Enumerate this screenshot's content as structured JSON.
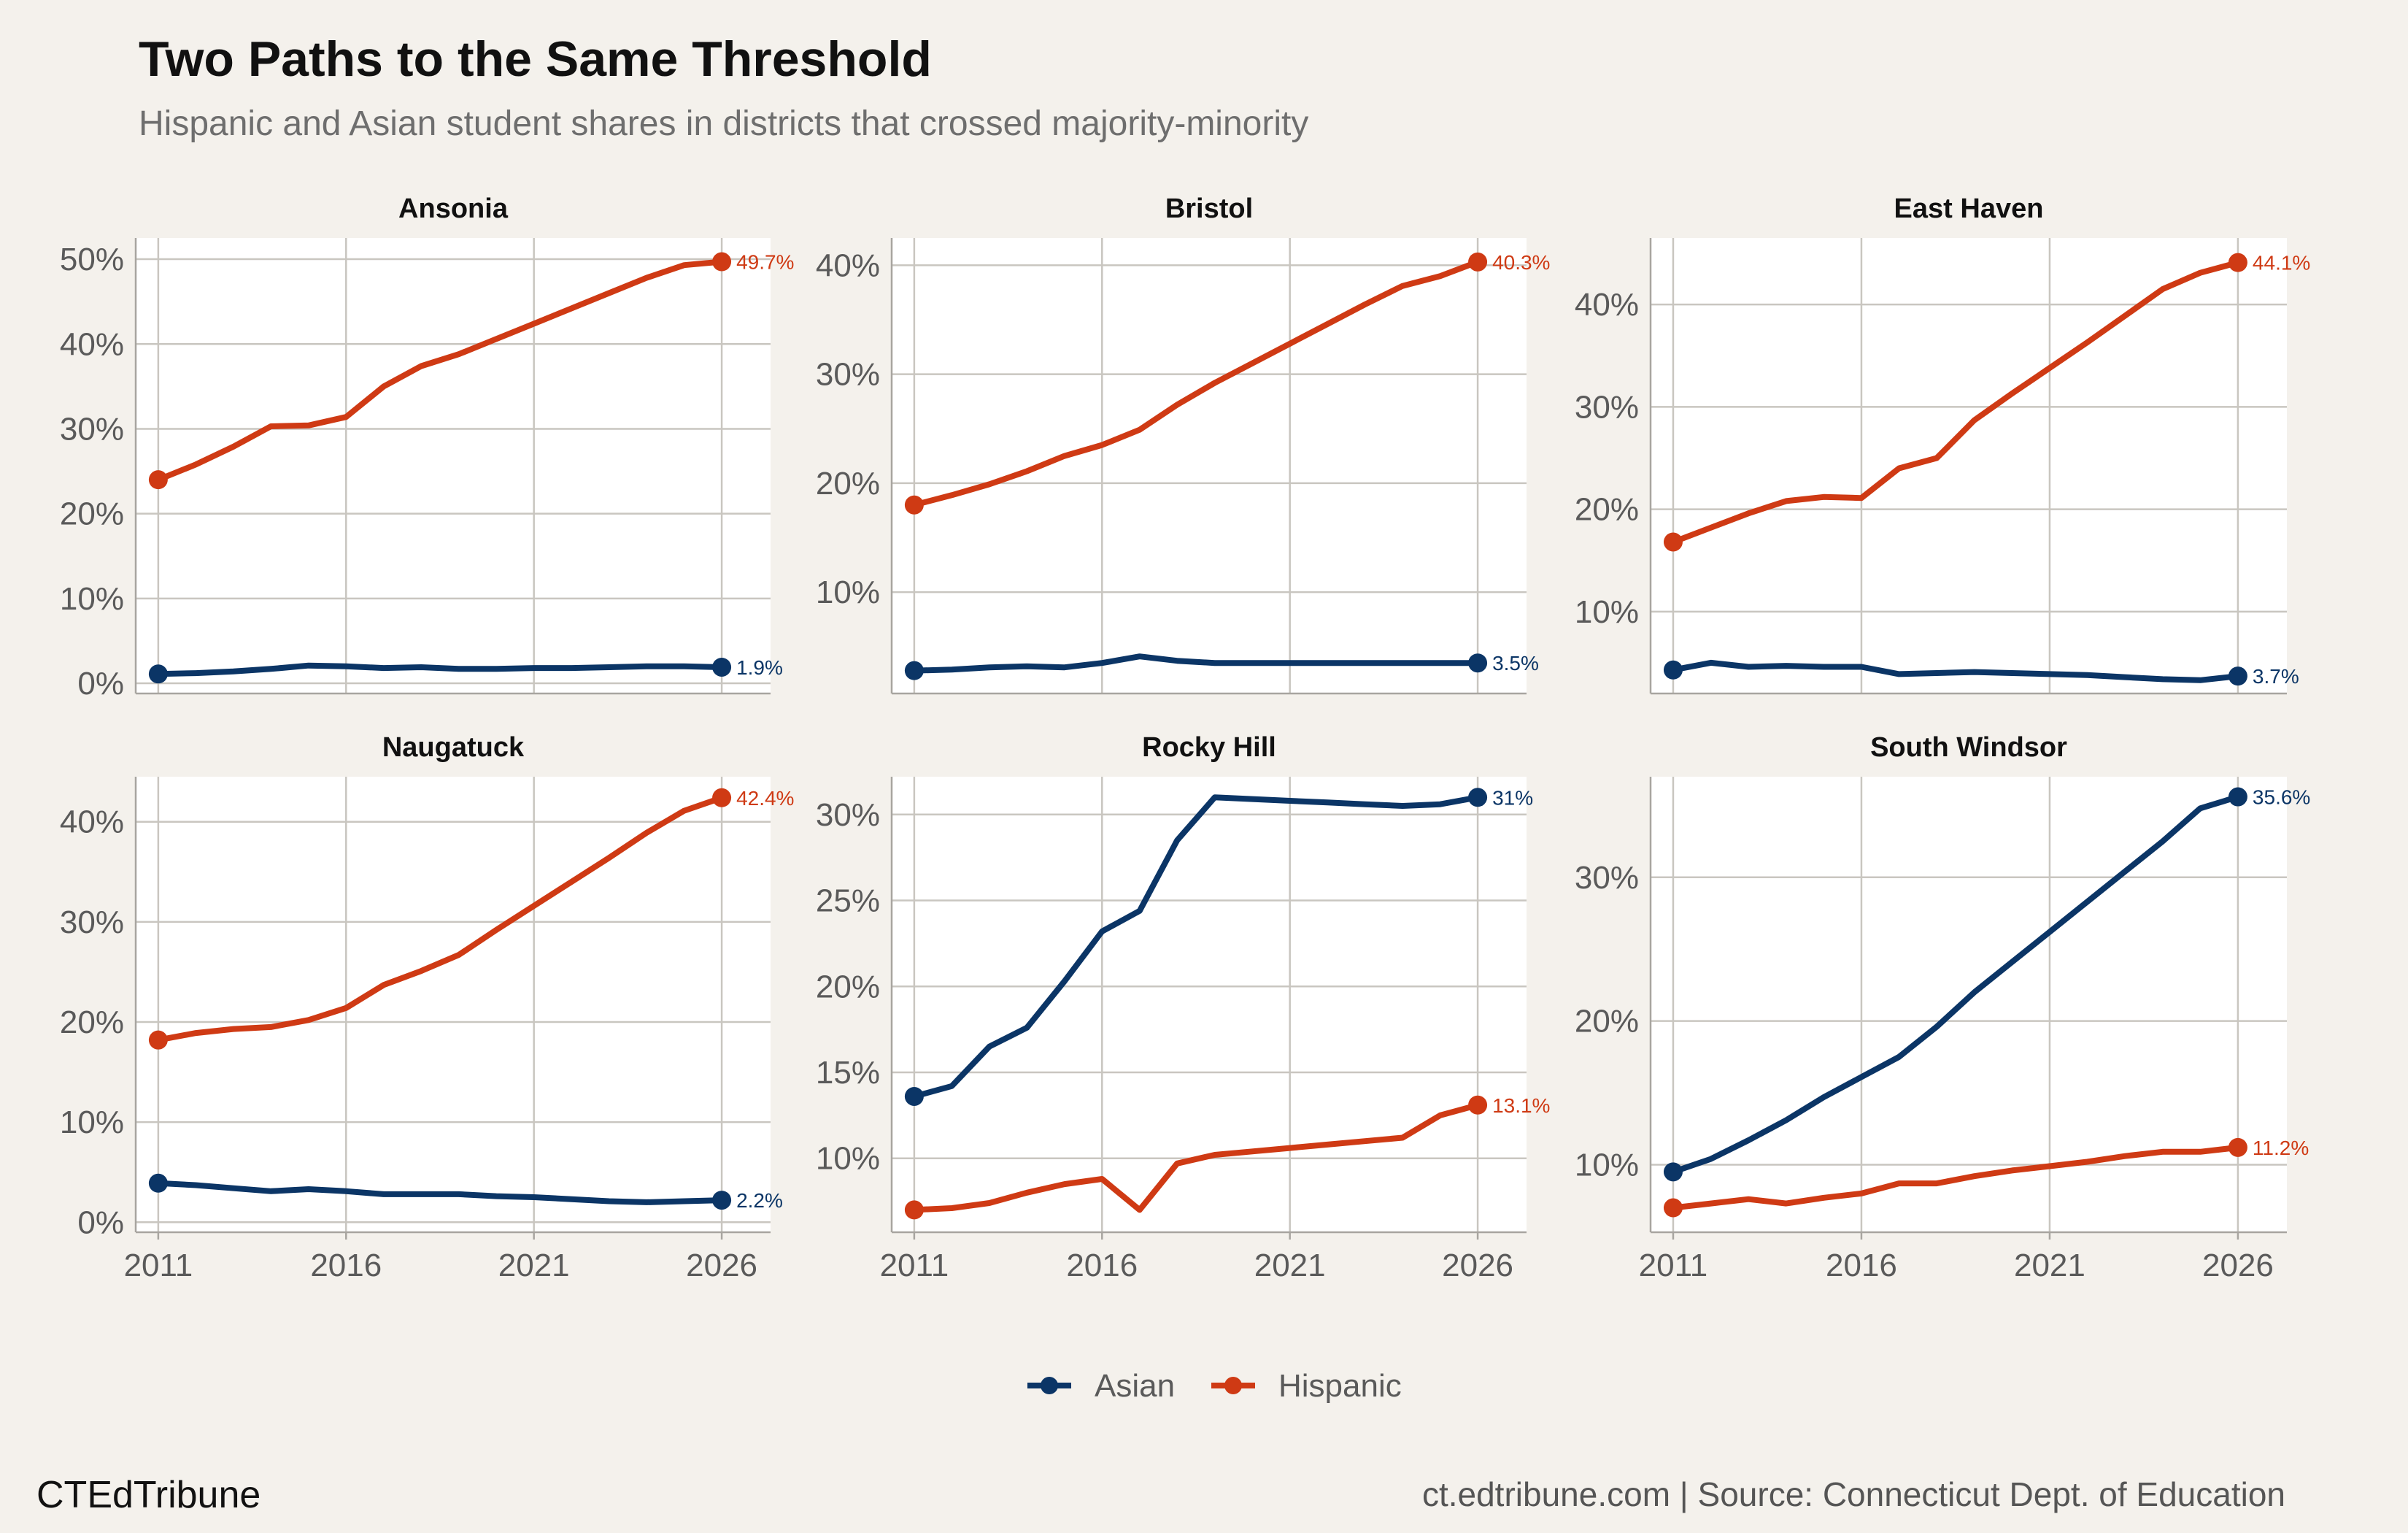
{
  "title": "Two Paths to the Same Threshold",
  "subtitle": "Hispanic and Asian student shares in districts that crossed majority-minority",
  "brand": "CTEdTribune",
  "source": "ct.edtribune.com | Source: Connecticut Dept. of Education",
  "colors": {
    "asian": "#0b3566",
    "hispanic": "#cf3a14",
    "grid": "#c9c6c0",
    "axis_text": "#5a5a5a"
  },
  "chart_data": {
    "type": "line",
    "x_ticks": [
      2011,
      2016,
      2021,
      2026
    ],
    "xlim": [
      2010.4,
      2027.3
    ],
    "legend": {
      "placement": "bottom",
      "entries": [
        "Asian",
        "Hispanic"
      ]
    },
    "panels": [
      {
        "name": "Ansonia",
        "ylim": [
          -0.012,
          0.525
        ],
        "y_ticks": [
          0,
          0.1,
          0.2,
          0.3,
          0.4,
          0.5
        ],
        "y_tick_labels": [
          "0%",
          "10%",
          "20%",
          "30%",
          "40%",
          "50%"
        ],
        "series": [
          {
            "name": "Hispanic",
            "end_label": "49.7%",
            "x": [
              2011,
              2012,
              2013,
              2014,
              2015,
              2016,
              2017,
              2018,
              2019,
              2020,
              2021,
              2022,
              2023,
              2024,
              2025,
              2026
            ],
            "y": [
              0.24,
              0.258,
              0.279,
              0.303,
              0.304,
              0.314,
              0.35,
              0.374,
              0.388,
              0.406,
              0.424,
              0.442,
              0.46,
              0.478,
              0.493,
              0.497
            ]
          },
          {
            "name": "Asian",
            "end_label": "1.9%",
            "x": [
              2011,
              2012,
              2013,
              2014,
              2015,
              2016,
              2017,
              2018,
              2019,
              2020,
              2021,
              2022,
              2023,
              2024,
              2025,
              2026
            ],
            "y": [
              0.011,
              0.012,
              0.014,
              0.017,
              0.021,
              0.02,
              0.018,
              0.019,
              0.017,
              0.017,
              0.018,
              0.018,
              0.019,
              0.02,
              0.02,
              0.019
            ]
          }
        ]
      },
      {
        "name": "Bristol",
        "ylim": [
          0.007,
          0.425
        ],
        "y_ticks": [
          0.1,
          0.2,
          0.3,
          0.4
        ],
        "y_tick_labels": [
          "10%",
          "20%",
          "30%",
          "40%"
        ],
        "series": [
          {
            "name": "Hispanic",
            "end_label": "40.3%",
            "x": [
              2011,
              2012,
              2013,
              2014,
              2015,
              2016,
              2017,
              2018,
              2019,
              2020,
              2021,
              2022,
              2023,
              2024,
              2025,
              2026
            ],
            "y": [
              0.18,
              0.189,
              0.199,
              0.211,
              0.225,
              0.235,
              0.249,
              0.272,
              0.292,
              0.31,
              0.328,
              0.346,
              0.364,
              0.381,
              0.39,
              0.403
            ]
          },
          {
            "name": "Asian",
            "end_label": "3.5%",
            "x": [
              2011,
              2012,
              2013,
              2014,
              2015,
              2016,
              2017,
              2018,
              2019,
              2020,
              2021,
              2022,
              2023,
              2024,
              2025,
              2026
            ],
            "y": [
              0.028,
              0.029,
              0.031,
              0.032,
              0.031,
              0.035,
              0.041,
              0.037,
              0.035,
              0.035,
              0.035,
              0.035,
              0.035,
              0.035,
              0.035,
              0.035
            ]
          }
        ]
      },
      {
        "name": "East Haven",
        "ylim": [
          0.02,
          0.465
        ],
        "y_ticks": [
          0.1,
          0.2,
          0.3,
          0.4
        ],
        "y_tick_labels": [
          "10%",
          "20%",
          "30%",
          "40%"
        ],
        "series": [
          {
            "name": "Hispanic",
            "end_label": "44.1%",
            "x": [
              2011,
              2012,
              2013,
              2014,
              2015,
              2016,
              2017,
              2018,
              2019,
              2020,
              2021,
              2022,
              2023,
              2024,
              2025,
              2026
            ],
            "y": [
              0.168,
              0.182,
              0.196,
              0.208,
              0.212,
              0.211,
              0.24,
              0.25,
              0.287,
              0.313,
              0.338,
              0.363,
              0.389,
              0.415,
              0.431,
              0.441
            ]
          },
          {
            "name": "Asian",
            "end_label": "3.7%",
            "x": [
              2011,
              2012,
              2013,
              2014,
              2015,
              2016,
              2017,
              2018,
              2019,
              2020,
              2021,
              2022,
              2023,
              2024,
              2025,
              2026
            ],
            "y": [
              0.043,
              0.05,
              0.046,
              0.047,
              0.046,
              0.046,
              0.039,
              0.04,
              0.041,
              0.04,
              0.039,
              0.038,
              0.036,
              0.034,
              0.033,
              0.037
            ]
          }
        ]
      },
      {
        "name": "Naugatuck",
        "ylim": [
          -0.01,
          0.445
        ],
        "y_ticks": [
          0,
          0.1,
          0.2,
          0.3,
          0.4
        ],
        "y_tick_labels": [
          "0%",
          "10%",
          "20%",
          "30%",
          "40%"
        ],
        "series": [
          {
            "name": "Hispanic",
            "end_label": "42.4%",
            "x": [
              2011,
              2012,
              2013,
              2014,
              2015,
              2016,
              2017,
              2018,
              2019,
              2020,
              2021,
              2022,
              2023,
              2024,
              2025,
              2026
            ],
            "y": [
              0.182,
              0.189,
              0.193,
              0.195,
              0.202,
              0.214,
              0.237,
              0.251,
              0.267,
              0.292,
              0.316,
              0.34,
              0.364,
              0.389,
              0.411,
              0.424
            ]
          },
          {
            "name": "Asian",
            "end_label": "2.2%",
            "x": [
              2011,
              2012,
              2013,
              2014,
              2015,
              2016,
              2017,
              2018,
              2019,
              2020,
              2021,
              2022,
              2023,
              2024,
              2025,
              2026
            ],
            "y": [
              0.039,
              0.037,
              0.034,
              0.031,
              0.033,
              0.031,
              0.028,
              0.028,
              0.028,
              0.026,
              0.025,
              0.023,
              0.021,
              0.02,
              0.021,
              0.022
            ]
          }
        ]
      },
      {
        "name": "Rocky Hill",
        "ylim": [
          0.057,
          0.322
        ],
        "y_ticks": [
          0.1,
          0.15,
          0.2,
          0.25,
          0.3
        ],
        "y_tick_labels": [
          "10%",
          "15%",
          "20%",
          "25%",
          "30%"
        ],
        "series": [
          {
            "name": "Asian",
            "end_label": "31%",
            "x": [
              2011,
              2012,
              2013,
              2014,
              2015,
              2016,
              2017,
              2018,
              2019,
              2020,
              2021,
              2022,
              2023,
              2024,
              2025,
              2026
            ],
            "y": [
              0.136,
              0.142,
              0.165,
              0.176,
              0.203,
              0.232,
              0.244,
              0.285,
              0.31,
              0.309,
              0.308,
              0.307,
              0.306,
              0.305,
              0.306,
              0.31
            ]
          },
          {
            "name": "Hispanic",
            "end_label": "13.1%",
            "x": [
              2011,
              2012,
              2013,
              2014,
              2015,
              2016,
              2017,
              2018,
              2019,
              2020,
              2021,
              2022,
              2023,
              2024,
              2025,
              2026
            ],
            "y": [
              0.07,
              0.071,
              0.074,
              0.08,
              0.085,
              0.088,
              0.07,
              0.097,
              0.102,
              0.104,
              0.106,
              0.108,
              0.11,
              0.112,
              0.125,
              0.131
            ]
          }
        ]
      },
      {
        "name": "South Windsor",
        "ylim": [
          0.053,
          0.37
        ],
        "y_ticks": [
          0.1,
          0.2,
          0.3
        ],
        "y_tick_labels": [
          "10%",
          "20%",
          "30%"
        ],
        "series": [
          {
            "name": "Asian",
            "end_label": "35.6%",
            "x": [
              2011,
              2012,
              2013,
              2014,
              2015,
              2016,
              2017,
              2018,
              2019,
              2020,
              2021,
              2022,
              2023,
              2024,
              2025,
              2026
            ],
            "y": [
              0.095,
              0.104,
              0.117,
              0.131,
              0.147,
              0.161,
              0.175,
              0.196,
              0.22,
              0.241,
              0.262,
              0.283,
              0.304,
              0.325,
              0.348,
              0.356
            ]
          },
          {
            "name": "Hispanic",
            "end_label": "11.2%",
            "x": [
              2011,
              2012,
              2013,
              2014,
              2015,
              2016,
              2017,
              2018,
              2019,
              2020,
              2021,
              2022,
              2023,
              2024,
              2025,
              2026
            ],
            "y": [
              0.07,
              0.073,
              0.076,
              0.073,
              0.077,
              0.08,
              0.087,
              0.087,
              0.092,
              0.096,
              0.099,
              0.102,
              0.106,
              0.109,
              0.109,
              0.112
            ]
          }
        ]
      }
    ]
  }
}
